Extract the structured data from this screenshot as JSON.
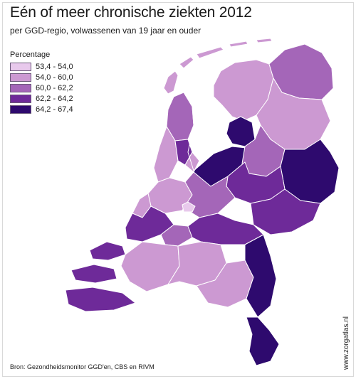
{
  "title": "Eén of meer chronische ziekten 2012",
  "subtitle": "per GGD-regio, volwassenen van 19 jaar en ouder",
  "legend": {
    "title": "Percentage",
    "items": [
      {
        "label": "53,4 - 54,0",
        "color": "#e8c9ec"
      },
      {
        "label": "54,0 - 60,0",
        "color": "#cc99d2"
      },
      {
        "label": "60,0 - 62,2",
        "color": "#a466b8"
      },
      {
        "label": "62,2 - 64,2",
        "color": "#6e2a99"
      },
      {
        "label": "64,2 - 67,4",
        "color": "#2e0a6e"
      }
    ]
  },
  "source": "Bron: Gezondheidsmonitor GGD'en, CBS en RIVM",
  "watermark": "www.zorgatlas.nl"
}
